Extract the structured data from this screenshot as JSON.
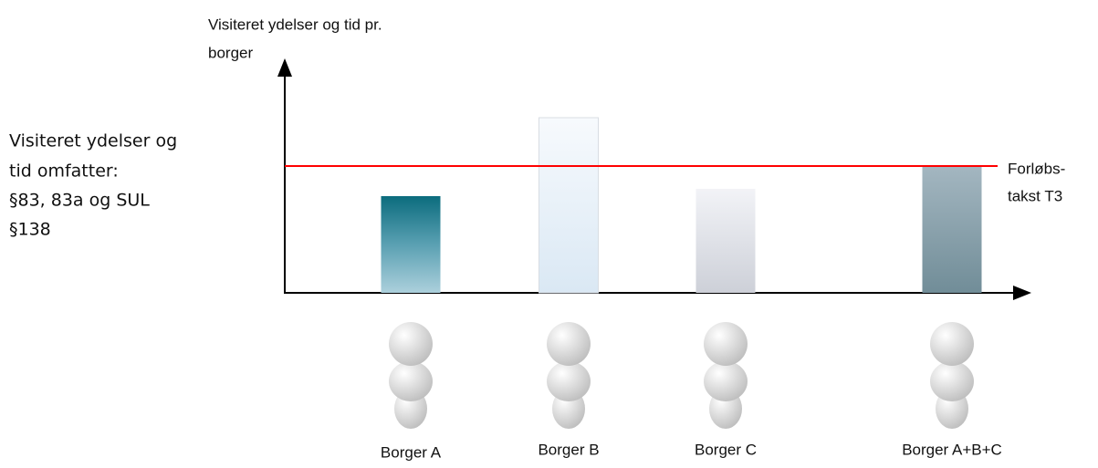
{
  "chart_data": {
    "type": "bar",
    "title": [
      "Visiteret ydelser og tid pr.",
      "borger"
    ],
    "annotation": [
      "Visiteret ydelser og",
      "tid omfatter:",
      "§83, 83a og SUL",
      "§138"
    ],
    "categories": [
      "Borger A",
      "Borger B",
      "Borger C",
      "Borger A+B+C"
    ],
    "values": [
      106,
      192,
      114,
      138
    ],
    "ylim": [
      0,
      250
    ],
    "reference_line": {
      "value": 139,
      "label": [
        "Forløbs-",
        "takst T3"
      ],
      "color": "#ff0000"
    }
  }
}
